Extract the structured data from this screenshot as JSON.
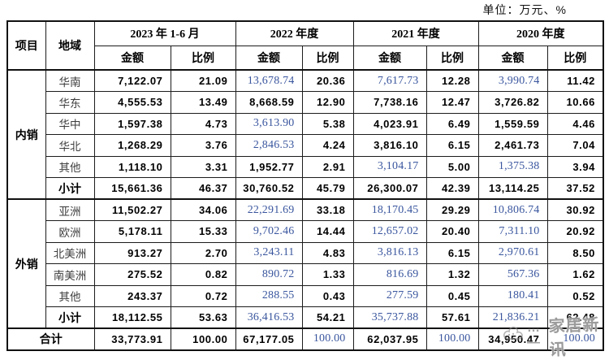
{
  "unit_label": "单位：万元、%",
  "watermark": {
    "text": "家居新讯",
    "decoration": "…—"
  },
  "table": {
    "headers": {
      "item": "项目",
      "region": "地域",
      "amount": "金额",
      "ratio": "比例",
      "periods": [
        "2023 年 1-6 月",
        "2022 年度",
        "2021 年度",
        "2020 年度"
      ]
    },
    "groups": [
      {
        "name": "内销",
        "rows": [
          {
            "region": "华南",
            "subtotal": false,
            "cells": [
              [
                "7,122.07",
                "b"
              ],
              [
                "21.09",
                "b"
              ],
              [
                "13,678.74",
                "r"
              ],
              [
                "20.36",
                "b"
              ],
              [
                "7,617.73",
                "r"
              ],
              [
                "12.28",
                "b"
              ],
              [
                "3,990.74",
                "r"
              ],
              [
                "11.42",
                "b"
              ]
            ]
          },
          {
            "region": "华东",
            "subtotal": false,
            "cells": [
              [
                "4,555.53",
                "b"
              ],
              [
                "13.49",
                "b"
              ],
              [
                "8,668.59",
                "b"
              ],
              [
                "12.90",
                "b"
              ],
              [
                "7,738.16",
                "b"
              ],
              [
                "12.47",
                "b"
              ],
              [
                "3,726.82",
                "b"
              ],
              [
                "10.66",
                "b"
              ]
            ]
          },
          {
            "region": "华中",
            "subtotal": false,
            "cells": [
              [
                "1,597.38",
                "b"
              ],
              [
                "4.73",
                "b"
              ],
              [
                "3,613.90",
                "r"
              ],
              [
                "5.38",
                "b"
              ],
              [
                "4,023.91",
                "b"
              ],
              [
                "6.49",
                "b"
              ],
              [
                "1,559.59",
                "b"
              ],
              [
                "4.46",
                "b"
              ]
            ]
          },
          {
            "region": "华北",
            "subtotal": false,
            "cells": [
              [
                "1,268.29",
                "b"
              ],
              [
                "3.76",
                "b"
              ],
              [
                "2,846.53",
                "r"
              ],
              [
                "4.24",
                "b"
              ],
              [
                "3,816.10",
                "b"
              ],
              [
                "6.15",
                "b"
              ],
              [
                "2,461.73",
                "b"
              ],
              [
                "7.04",
                "b"
              ]
            ]
          },
          {
            "region": "其他",
            "subtotal": false,
            "cells": [
              [
                "1,118.10",
                "b"
              ],
              [
                "3.31",
                "b"
              ],
              [
                "1,952.77",
                "b"
              ],
              [
                "2.91",
                "b"
              ],
              [
                "3,104.17",
                "r"
              ],
              [
                "5.00",
                "b"
              ],
              [
                "1,375.38",
                "r"
              ],
              [
                "3.94",
                "b"
              ]
            ]
          },
          {
            "region": "小计",
            "subtotal": true,
            "cells": [
              [
                "15,661.36",
                "b"
              ],
              [
                "46.37",
                "b"
              ],
              [
                "30,760.52",
                "b"
              ],
              [
                "45.79",
                "b"
              ],
              [
                "26,300.07",
                "b"
              ],
              [
                "42.39",
                "b"
              ],
              [
                "13,114.25",
                "b"
              ],
              [
                "37.52",
                "b"
              ]
            ]
          }
        ]
      },
      {
        "name": "外销",
        "rows": [
          {
            "region": "亚洲",
            "subtotal": false,
            "cells": [
              [
                "11,502.27",
                "b"
              ],
              [
                "34.06",
                "b"
              ],
              [
                "22,291.69",
                "r"
              ],
              [
                "33.18",
                "b"
              ],
              [
                "18,170.45",
                "r"
              ],
              [
                "29.29",
                "b"
              ],
              [
                "10,806.74",
                "r"
              ],
              [
                "30.92",
                "b"
              ]
            ]
          },
          {
            "region": "欧洲",
            "subtotal": false,
            "cells": [
              [
                "5,178.11",
                "b"
              ],
              [
                "15.33",
                "b"
              ],
              [
                "9,702.46",
                "r"
              ],
              [
                "14.44",
                "b"
              ],
              [
                "12,657.02",
                "r"
              ],
              [
                "20.40",
                "b"
              ],
              [
                "7,311.10",
                "r"
              ],
              [
                "20.92",
                "b"
              ]
            ]
          },
          {
            "region": "北美洲",
            "subtotal": false,
            "cells": [
              [
                "913.27",
                "b"
              ],
              [
                "2.70",
                "b"
              ],
              [
                "3,243.11",
                "r"
              ],
              [
                "4.83",
                "b"
              ],
              [
                "3,816.13",
                "r"
              ],
              [
                "6.15",
                "b"
              ],
              [
                "2,970.61",
                "r"
              ],
              [
                "8.50",
                "b"
              ]
            ]
          },
          {
            "region": "南美洲",
            "subtotal": false,
            "cells": [
              [
                "275.52",
                "b"
              ],
              [
                "0.82",
                "b"
              ],
              [
                "890.72",
                "r"
              ],
              [
                "1.33",
                "b"
              ],
              [
                "816.69",
                "r"
              ],
              [
                "1.32",
                "b"
              ],
              [
                "567.36",
                "r"
              ],
              [
                "1.62",
                "b"
              ]
            ]
          },
          {
            "region": "其他",
            "subtotal": false,
            "cells": [
              [
                "243.37",
                "b"
              ],
              [
                "0.72",
                "b"
              ],
              [
                "288.55",
                "r"
              ],
              [
                "0.43",
                "b"
              ],
              [
                "277.59",
                "r"
              ],
              [
                "0.45",
                "b"
              ],
              [
                "180.41",
                "r"
              ],
              [
                "0.52",
                "b"
              ]
            ]
          },
          {
            "region": "小计",
            "subtotal": true,
            "cells": [
              [
                "18,112.55",
                "b"
              ],
              [
                "53.63",
                "b"
              ],
              [
                "36,416.53",
                "r"
              ],
              [
                "54.21",
                "b"
              ],
              [
                "35,737.88",
                "r"
              ],
              [
                "57.61",
                "b"
              ],
              [
                "21,836.21",
                "r"
              ],
              [
                "62.48",
                "b"
              ]
            ]
          }
        ]
      }
    ],
    "total": {
      "label": "合计",
      "cells": [
        [
          "33,773.91",
          "b"
        ],
        [
          "100.00",
          "b"
        ],
        [
          "67,177.05",
          "b"
        ],
        [
          "100.00",
          "r"
        ],
        [
          "62,037.95",
          "b"
        ],
        [
          "100.00",
          "r"
        ],
        [
          "34,950.47",
          "b"
        ],
        [
          "100.00",
          "r"
        ]
      ]
    }
  }
}
